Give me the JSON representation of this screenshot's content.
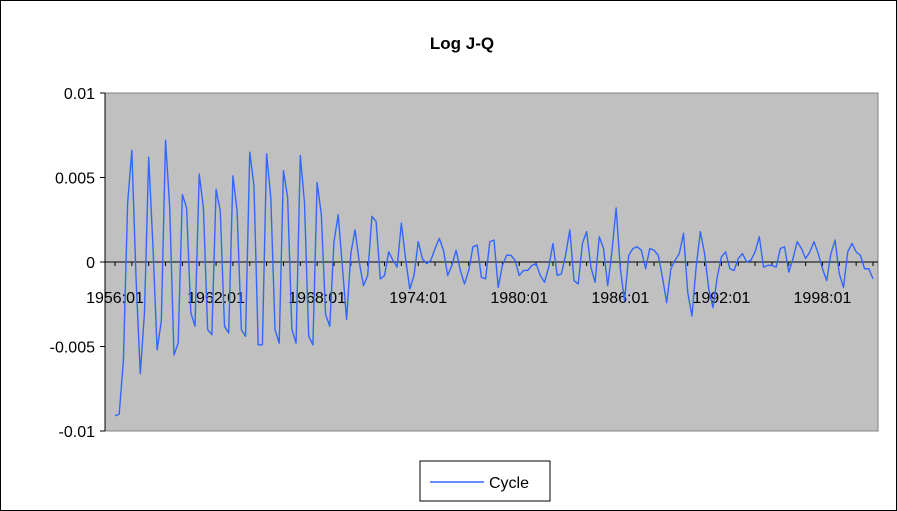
{
  "chart_data": {
    "type": "line",
    "title": "Log J-Q",
    "xlabel": "",
    "ylabel": "",
    "ylim": [
      -0.01,
      0.01
    ],
    "y_ticks": [
      0.01,
      0.005,
      0,
      -0.005,
      -0.01
    ],
    "y_tick_labels": [
      "0.01",
      "0.005",
      "0",
      "-0.005",
      "-0.01"
    ],
    "x_tick_labels": [
      "1956:01",
      "1962:01",
      "1968:01",
      "1974:01",
      "1980:01",
      "1986:01",
      "1992:01",
      "1998:01"
    ],
    "x_tick_index": [
      0,
      24,
      48,
      72,
      96,
      120,
      144,
      168
    ],
    "legend": "bottom-center",
    "grid": false,
    "plot_background": "#C0C0C0",
    "series": [
      {
        "name": "Cycle",
        "color": "#3366FF",
        "values": [
          -0.0091,
          -0.009,
          -0.0058,
          0.0035,
          0.0066,
          -0.001,
          -0.0066,
          -0.003,
          0.0062,
          0.001,
          -0.0052,
          -0.0035,
          0.0072,
          0.0032,
          -0.0055,
          -0.0048,
          0.004,
          0.0032,
          -0.003,
          -0.0038,
          0.0052,
          0.0032,
          -0.004,
          -0.0043,
          0.0043,
          0.003,
          -0.0038,
          -0.0042,
          0.0051,
          0.003,
          -0.004,
          -0.0044,
          0.0065,
          0.0045,
          -0.0049,
          -0.0049,
          0.0064,
          0.0038,
          -0.004,
          -0.0048,
          0.0054,
          0.0038,
          -0.004,
          -0.0048,
          0.0063,
          0.0035,
          -0.0044,
          -0.0049,
          0.0047,
          0.0028,
          -0.0031,
          -0.0038,
          0.0012,
          0.0028,
          -0.0003,
          -0.0034,
          0.0005,
          0.0019,
          0.0,
          -0.0014,
          -0.0008,
          0.0027,
          0.0024,
          -0.001,
          -0.0008,
          0.0006,
          0.0001,
          -0.0003,
          0.0023,
          0.0002,
          -0.0016,
          -0.0008,
          0.0012,
          0.0002,
          -0.0001,
          0.0001,
          0.0008,
          0.0014,
          0.0007,
          -0.0008,
          -0.0002,
          0.0007,
          -0.0005,
          -0.0013,
          -0.0005,
          0.0009,
          0.001,
          -0.0009,
          -0.001,
          0.0012,
          0.0013,
          -0.0015,
          -0.0002,
          0.0004,
          0.0004,
          0.0001,
          -0.0008,
          -0.0005,
          -0.0005,
          -0.0002,
          -0.0001,
          -0.0008,
          -0.0012,
          -0.0003,
          0.0011,
          -0.0008,
          -0.0007,
          0.0004,
          0.0019,
          -0.0011,
          -0.0013,
          0.0011,
          0.0018,
          -0.0003,
          -0.0012,
          0.0015,
          0.0008,
          -0.0014,
          0.0006,
          0.0032,
          -0.0004,
          -0.0023,
          0.0004,
          0.0008,
          0.0009,
          0.0007,
          -0.0004,
          0.0008,
          0.0007,
          0.0004,
          -0.0009,
          -0.0024,
          -0.0004,
          0.0001,
          0.0005,
          0.0017,
          -0.0018,
          -0.0032,
          -0.0003,
          0.0018,
          0.0005,
          -0.0016,
          -0.0027,
          -0.0009,
          0.0003,
          0.0006,
          -0.0004,
          -0.0005,
          0.0002,
          0.0005,
          0.0,
          0.0001,
          0.0006,
          0.0015,
          -0.0003,
          -0.0002,
          -0.0002,
          -0.0003,
          0.0008,
          0.0009,
          -0.0006,
          0.0002,
          0.0012,
          0.0008,
          0.0002,
          0.0006,
          0.0012,
          0.0005,
          -0.0004,
          -0.0011,
          0.0005,
          0.0013,
          -0.0007,
          -0.0015,
          0.0006,
          0.0011,
          0.0006,
          0.0004,
          -0.0004,
          -0.0004,
          -0.001
        ]
      }
    ]
  }
}
